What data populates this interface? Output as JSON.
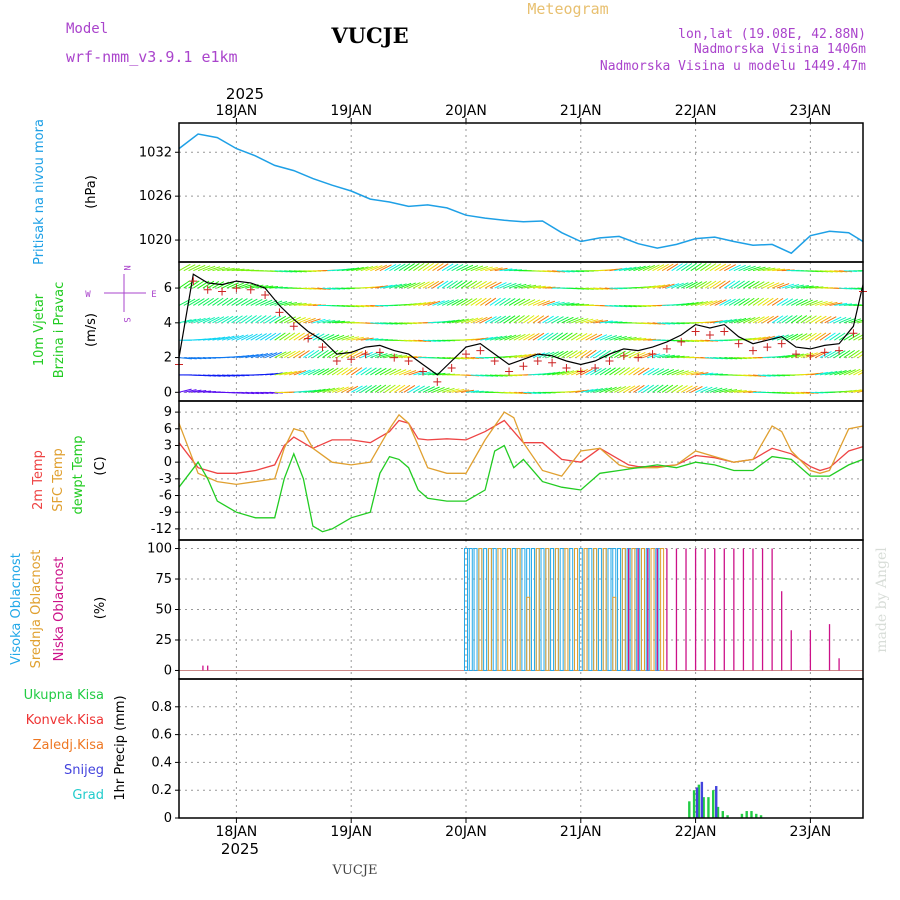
{
  "header": {
    "model_label": "Model",
    "model_name": "wrf-nmm_v3.9.1 e1km",
    "station": "VUCJE",
    "meteogram": "Meteogram",
    "lonlat": "lon,lat (19.08E, 42.88N)",
    "altitude": "Nadmorska Visina 1406m",
    "altitude_model": "Nadmorska Visina u modelu 1449.47m",
    "year_top": "2025",
    "year_bottom": "2025",
    "footer_station": "VUCJE",
    "watermark": "made by Angel"
  },
  "colors": {
    "pressure": "#1ea0e6",
    "wind_label": "#22cc22",
    "temp2m": "#ee4444",
    "sfc": "#e0a030",
    "dewpt": "#22cc22",
    "cloud_high": "#22a8e8",
    "cloud_mid": "#e0a030",
    "cloud_low": "#cc1188",
    "precip_total": "#22cc44",
    "precip_conv": "#ee3333",
    "precip_frozen": "#ee7722",
    "snow": "#4444dd",
    "graupel": "#22cccc",
    "wind_mark": "#cc2222"
  },
  "chart_data": [
    {
      "type": "line",
      "id": "pressure",
      "ylabel_main": "Pritisak na nivou mora",
      "ylabel_unit": "(hPa)",
      "yticks": [
        "1032",
        "1026",
        "1020"
      ],
      "ylim": [
        1017,
        1036
      ],
      "xlim": [
        0,
        143
      ],
      "series": [
        {
          "x": [
            0,
            4,
            8,
            12,
            16,
            20,
            24,
            28,
            32,
            36,
            40,
            44,
            48,
            52,
            56,
            60,
            64,
            68,
            72,
            76,
            80,
            84,
            88,
            92,
            96,
            100,
            104,
            108,
            112,
            116,
            120,
            124,
            128,
            132,
            136,
            140,
            143
          ],
          "values": [
            1032.5,
            1034.5,
            1034.0,
            1032.5,
            1031.5,
            1030.2,
            1029.5,
            1028.4,
            1027.5,
            1026.7,
            1025.6,
            1025.2,
            1024.6,
            1024.8,
            1024.4,
            1023.4,
            1023.0,
            1022.7,
            1022.5,
            1022.6,
            1021.0,
            1019.8,
            1020.3,
            1020.5,
            1019.5,
            1018.9,
            1019.4,
            1020.2,
            1020.4,
            1019.8,
            1019.3,
            1019.4,
            1018.2,
            1020.6,
            1021.2,
            1021.0,
            1019.8
          ]
        }
      ]
    },
    {
      "type": "line",
      "id": "wind",
      "ylabel_main": "10m Vjetar",
      "ylabel_sub": "Brzina i Pravac",
      "ylabel_unit": "(m/s)",
      "compass": {
        "n": "N",
        "s": "S",
        "w": "W",
        "e": "E"
      },
      "yticks": [
        "6",
        "4",
        "2",
        "0"
      ],
      "ylim": [
        -0.5,
        7.5
      ],
      "xlim": [
        0,
        143
      ],
      "series": [
        {
          "name": "speed",
          "x": [
            0,
            3,
            6,
            9,
            12,
            15,
            18,
            21,
            24,
            27,
            30,
            33,
            36,
            39,
            42,
            45,
            48,
            51,
            54,
            57,
            60,
            63,
            66,
            69,
            72,
            75,
            78,
            81,
            84,
            87,
            90,
            93,
            96,
            99,
            102,
            105,
            108,
            111,
            114,
            117,
            120,
            123,
            126,
            129,
            132,
            135,
            138,
            141,
            143
          ],
          "values": [
            2.0,
            6.8,
            6.3,
            6.2,
            6.4,
            6.3,
            6.0,
            5.0,
            4.2,
            3.5,
            3.0,
            2.2,
            2.3,
            2.6,
            2.7,
            2.4,
            2.2,
            1.6,
            1.0,
            1.8,
            2.6,
            2.8,
            2.2,
            1.6,
            1.9,
            2.2,
            2.1,
            1.8,
            1.6,
            1.8,
            2.2,
            2.5,
            2.4,
            2.6,
            2.9,
            3.3,
            3.9,
            3.7,
            3.9,
            3.2,
            2.8,
            3.0,
            3.2,
            2.6,
            2.5,
            2.7,
            2.8,
            3.8,
            6.2
          ]
        }
      ],
      "wind_rows": [
        0,
        1,
        2,
        3,
        4,
        5,
        6,
        7
      ]
    },
    {
      "type": "line",
      "id": "temperature",
      "ylabel_a": "2m Temp",
      "ylabel_b": "SFC Temp",
      "ylabel_c": "dewpt Temp",
      "ylabel_unit": "(C)",
      "yticks": [
        "9",
        "6",
        "3",
        "0",
        "-3",
        "-6",
        "-9",
        "-12"
      ],
      "ylim": [
        -14,
        11
      ],
      "xlim": [
        0,
        143
      ],
      "series": [
        {
          "name": "2m",
          "x": [
            0,
            4,
            8,
            12,
            16,
            20,
            22,
            24,
            28,
            32,
            36,
            40,
            44,
            46,
            48,
            50,
            52,
            56,
            60,
            64,
            68,
            70,
            72,
            76,
            80,
            84,
            88,
            92,
            94,
            96,
            100,
            104,
            108,
            112,
            116,
            120,
            124,
            128,
            132,
            134,
            136,
            140,
            143
          ],
          "values": [
            3.5,
            -1.0,
            -2.0,
            -2.0,
            -1.5,
            -0.5,
            3.0,
            4.5,
            2.5,
            4.0,
            4.0,
            3.5,
            5.5,
            7.5,
            7.0,
            4.2,
            4.0,
            4.2,
            4.0,
            5.5,
            7.5,
            5.5,
            3.5,
            3.5,
            0.5,
            0.0,
            2.5,
            0.5,
            -0.5,
            -0.8,
            -0.8,
            -0.5,
            1.2,
            0.8,
            0.0,
            0.5,
            2.5,
            1.5,
            -0.8,
            -1.5,
            -1.0,
            2.0,
            2.8
          ]
        },
        {
          "name": "SFC",
          "x": [
            0,
            4,
            8,
            12,
            16,
            20,
            22,
            24,
            26,
            28,
            32,
            36,
            40,
            44,
            46,
            48,
            50,
            52,
            56,
            60,
            64,
            68,
            70,
            72,
            76,
            80,
            84,
            88,
            92,
            94,
            96,
            100,
            104,
            108,
            112,
            116,
            120,
            124,
            126,
            128,
            132,
            134,
            136,
            140,
            143
          ],
          "values": [
            7.0,
            -2.0,
            -3.5,
            -4.0,
            -3.5,
            -3.0,
            2.5,
            6.0,
            5.5,
            2.5,
            0.0,
            -0.5,
            0.0,
            6.0,
            8.5,
            7.0,
            3.0,
            -1.0,
            -2.0,
            -2.0,
            4.0,
            9.0,
            8.0,
            3.5,
            -1.5,
            -2.5,
            2.0,
            2.5,
            -0.5,
            -1.0,
            -1.0,
            -1.0,
            -0.5,
            2.0,
            1.0,
            0.0,
            0.5,
            6.5,
            5.5,
            2.0,
            -1.5,
            -2.0,
            -1.5,
            6.0,
            6.5
          ]
        },
        {
          "name": "dewpt",
          "x": [
            0,
            4,
            6,
            8,
            12,
            16,
            20,
            22,
            24,
            26,
            28,
            30,
            32,
            36,
            40,
            42,
            44,
            46,
            48,
            50,
            52,
            56,
            60,
            64,
            66,
            68,
            70,
            72,
            76,
            80,
            84,
            88,
            92,
            96,
            100,
            104,
            108,
            112,
            116,
            120,
            124,
            128,
            132,
            136,
            140,
            143
          ],
          "values": [
            -4.5,
            0.0,
            -3.0,
            -7.0,
            -9.0,
            -10.0,
            -10.0,
            -3.0,
            1.5,
            -3.0,
            -11.5,
            -12.5,
            -12.0,
            -10.0,
            -9.0,
            -2.0,
            1.0,
            0.5,
            -1.0,
            -5.0,
            -6.5,
            -7.0,
            -7.0,
            -5.0,
            2.0,
            3.0,
            -1.0,
            0.5,
            -3.5,
            -4.5,
            -5.0,
            -2.0,
            -1.5,
            -1.0,
            -0.5,
            -1.0,
            0.0,
            -0.5,
            -1.5,
            -1.5,
            1.0,
            0.5,
            -2.5,
            -2.5,
            -0.5,
            0.5
          ]
        }
      ]
    },
    {
      "type": "bar",
      "id": "cloud",
      "ylabel_a": "Visoka Oblacnost",
      "ylabel_b": "Srednja Oblacnost",
      "ylabel_c": "Niska Oblacnost",
      "ylabel_unit": "(%)",
      "yticks": [
        "100",
        "75",
        "50",
        "25",
        "0"
      ],
      "ylim": [
        -7,
        107
      ],
      "xlim": [
        0,
        143
      ],
      "series": [
        {
          "name": "high",
          "x": [
            60,
            61,
            62,
            63,
            64,
            65,
            66,
            67,
            68,
            69,
            70,
            71,
            72,
            73,
            74,
            75,
            76,
            77,
            78,
            79,
            80,
            81,
            82,
            83,
            84,
            85,
            86,
            87,
            88,
            89,
            90,
            91,
            92,
            93,
            94,
            95,
            96,
            97,
            98,
            100
          ],
          "values": [
            100,
            100,
            100,
            100,
            100,
            100,
            100,
            100,
            100,
            100,
            100,
            100,
            100,
            100,
            100,
            100,
            100,
            100,
            100,
            100,
            100,
            100,
            100,
            100,
            100,
            100,
            100,
            100,
            100,
            100,
            100,
            100,
            100,
            100,
            100,
            100,
            100,
            100,
            100,
            100
          ]
        },
        {
          "name": "mid",
          "x": [
            63,
            65,
            67,
            69,
            71,
            73,
            75,
            77,
            79,
            81,
            83,
            85,
            87,
            89,
            91,
            93,
            95,
            97,
            99,
            101
          ],
          "values": [
            100,
            100,
            100,
            100,
            100,
            60,
            100,
            100,
            100,
            100,
            100,
            100,
            100,
            100,
            60,
            100,
            100,
            100,
            100,
            100
          ]
        },
        {
          "name": "low",
          "x": [
            5,
            6,
            94,
            96,
            98,
            100,
            102,
            104,
            106,
            108,
            110,
            112,
            114,
            116,
            118,
            120,
            122,
            124,
            126,
            128,
            132,
            136,
            138
          ],
          "values": [
            4,
            4,
            100,
            100,
            100,
            100,
            100,
            100,
            100,
            100,
            100,
            100,
            100,
            100,
            100,
            100,
            100,
            100,
            65,
            33,
            33,
            38,
            10
          ]
        }
      ]
    },
    {
      "type": "bar",
      "id": "precip",
      "legend": [
        "Ukupna Kisa",
        "Konvek.Kisa",
        "Zaledj.Kisa",
        "Snijeg",
        "Grad"
      ],
      "ylabel_unit": "1hr Precip (mm)",
      "yticks": [
        "0.8",
        "0.6",
        "0.4",
        "0.2",
        "0"
      ],
      "ylim": [
        0,
        1.0
      ],
      "xlim": [
        0,
        143
      ],
      "series": [
        {
          "name": "Ukupna Kisa",
          "x": [
            107,
            108,
            109,
            110,
            111,
            112,
            113,
            114,
            115,
            118,
            119,
            120,
            121,
            122
          ],
          "values": [
            0.12,
            0.2,
            0.24,
            0.15,
            0.15,
            0.2,
            0.08,
            0.05,
            0.02,
            0.03,
            0.05,
            0.05,
            0.03,
            0.02
          ]
        },
        {
          "name": "Snijeg",
          "x": [
            108,
            109,
            112
          ],
          "values": [
            0.22,
            0.26,
            0.23
          ]
        }
      ]
    }
  ],
  "xaxis": {
    "top_labels": [
      "18JAN",
      "19JAN",
      "20JAN",
      "21JAN",
      "22JAN",
      "23JAN"
    ],
    "bottom_labels": [
      "18JAN",
      "19JAN",
      "20JAN",
      "21JAN",
      "22JAN",
      "23JAN"
    ],
    "day_hours": [
      12,
      36,
      60,
      84,
      108,
      132
    ]
  }
}
